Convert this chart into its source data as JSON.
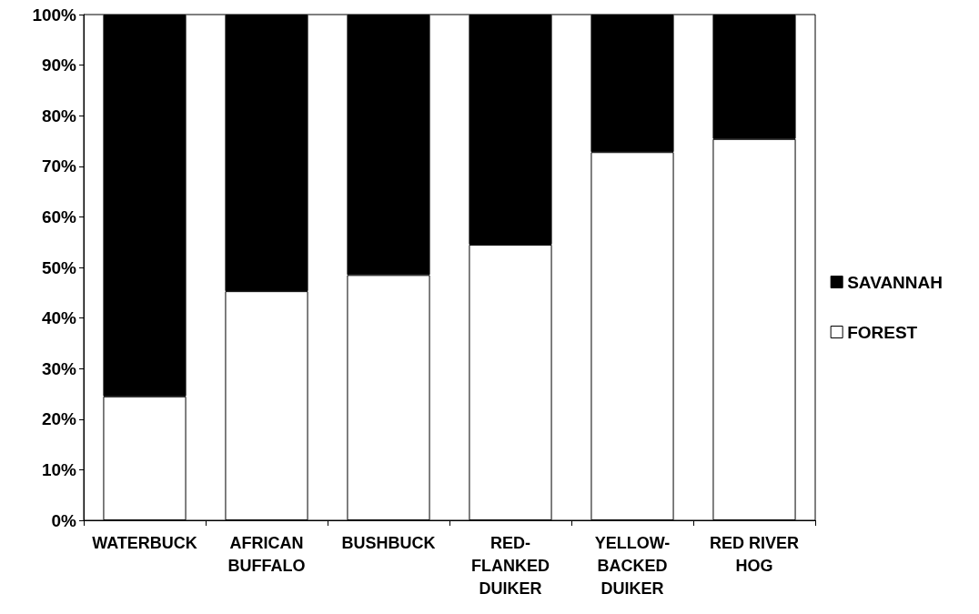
{
  "chart_data": {
    "type": "bar",
    "stacked": true,
    "categories": [
      "WATERBUCK",
      "AFRICAN\nBUFFALO",
      "BUSHBUCK",
      "RED-\nFLANKED\nDUIKER",
      "YELLOW-\nBACKED\nDUIKER",
      "RED RIVER\nHOG"
    ],
    "series": [
      {
        "name": "FOREST",
        "color": "#ffffff",
        "values": [
          24.5,
          45.3,
          48.5,
          54.5,
          72.8,
          75.4
        ]
      },
      {
        "name": "SAVANNAH",
        "color": "#000000",
        "values": [
          75.5,
          54.7,
          51.5,
          45.5,
          27.2,
          24.6
        ]
      }
    ],
    "ylim": [
      0,
      100
    ],
    "yticks": [
      {
        "value": 0,
        "label": "0%"
      },
      {
        "value": 10,
        "label": "10%"
      },
      {
        "value": 20,
        "label": "20%"
      },
      {
        "value": 30,
        "label": "30%"
      },
      {
        "value": 40,
        "label": "40%"
      },
      {
        "value": 50,
        "label": "50%"
      },
      {
        "value": 60,
        "label": "60%"
      },
      {
        "value": 70,
        "label": "70%"
      },
      {
        "value": 80,
        "label": "80%"
      },
      {
        "value": 90,
        "label": "90%"
      },
      {
        "value": 100,
        "label": "100%"
      }
    ],
    "grid": false,
    "legend": "right"
  }
}
